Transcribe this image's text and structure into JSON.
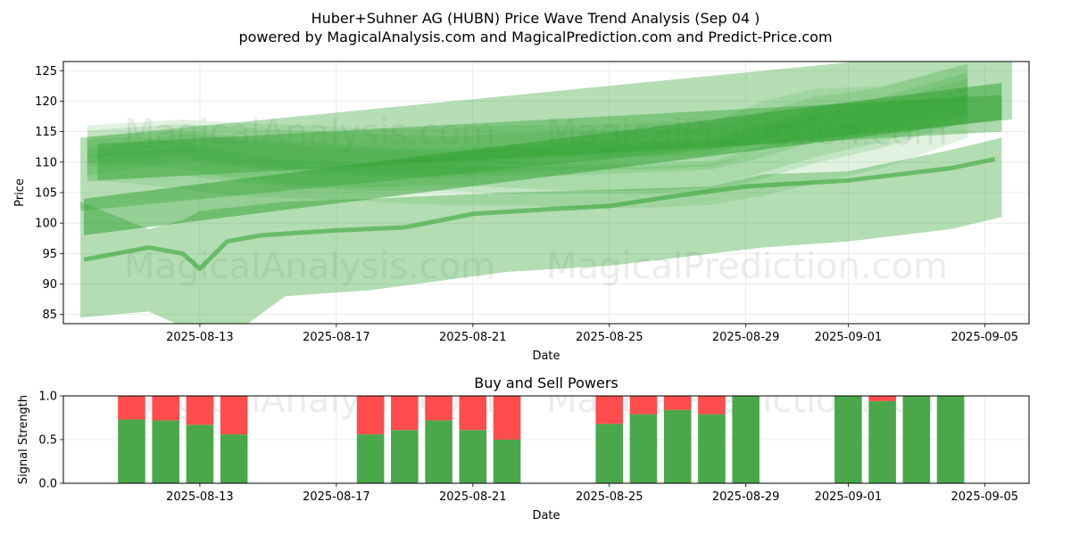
{
  "title_line1": "Huber+Suhner AG (HUBN) Price Wave Trend Analysis (Sep 04 )",
  "title_line2": "powered by MagicalAnalysis.com and MagicalPrediction.com and Predict-Price.com",
  "watermarks": [
    "MagicalAnalysis.com",
    "MagicalPrediction.com"
  ],
  "colors": {
    "band": "#2ca02c",
    "buy": "#4aa84a",
    "sell": "#ff4c4c",
    "grid": "#e6e6e6"
  },
  "chart_data": [
    {
      "type": "area",
      "title": "",
      "xlabel": "Date",
      "ylabel": "Price",
      "xlim": [
        -2.0,
        26.3
      ],
      "ylim": [
        83.5,
        126.5
      ],
      "x_ticks": [
        {
          "label": "2025-08-13",
          "pos": 2
        },
        {
          "label": "2025-08-17",
          "pos": 6
        },
        {
          "label": "2025-08-21",
          "pos": 10
        },
        {
          "label": "2025-08-25",
          "pos": 14
        },
        {
          "label": "2025-08-29",
          "pos": 18
        },
        {
          "label": "2025-09-01",
          "pos": 21
        },
        {
          "label": "2025-09-05",
          "pos": 25
        }
      ],
      "y_ticks": [
        85,
        90,
        95,
        100,
        105,
        110,
        115,
        120,
        125
      ],
      "wide_band": {
        "x": [
          -1.5,
          0.5,
          1.5,
          2.0,
          2.8,
          4.5,
          7.0,
          9.0,
          11.0,
          14.0,
          17.0,
          18.5,
          21.0,
          24.0,
          25.5
        ],
        "upper": [
          103.5,
          99.0,
          100.5,
          102.0,
          102.5,
          103.5,
          104.0,
          104.5,
          105.0,
          105.5,
          106.0,
          108.0,
          108.5,
          112.0,
          114.0
        ],
        "lower": [
          84.5,
          85.5,
          83.0,
          82.5,
          81.0,
          88.0,
          89.0,
          90.5,
          92.0,
          93.0,
          95.0,
          96.0,
          97.0,
          99.0,
          101.0
        ]
      },
      "main_line": {
        "x": [
          -1.4,
          0.5,
          1.5,
          2.0,
          2.8,
          3.8,
          6.0,
          8.0,
          10.0,
          12.0,
          14.0,
          16.0,
          18.0,
          21.0,
          24.0,
          25.3
        ],
        "y": [
          94.0,
          96.0,
          95.0,
          92.5,
          97.0,
          98.0,
          98.8,
          99.3,
          101.5,
          102.2,
          102.8,
          104.5,
          106.0,
          107.0,
          109.0,
          110.5
        ]
      },
      "trend_channels": [
        {
          "x": [
            -1.5,
            25.8
          ],
          "center": [
            108.0,
            123.0
          ],
          "half_width": 6.0,
          "opacity": 0.35
        },
        {
          "x": [
            -1.4,
            25.5
          ],
          "center": [
            101.0,
            120.0
          ],
          "half_width": 3.0,
          "opacity": 0.5
        },
        {
          "x": [
            -1.0,
            25.5
          ],
          "center": [
            110.0,
            118.0
          ],
          "half_width": 3.0,
          "opacity": 0.4
        }
      ],
      "wave_band": {
        "x": [
          -1.3,
          0.0,
          1.5,
          3.0,
          5.0,
          7.0,
          9.0,
          11.0,
          13.0,
          15.0,
          17.0,
          18.5,
          20.0,
          22.0,
          24.5
        ],
        "upper": [
          116.0,
          116.5,
          117.0,
          116.5,
          116.0,
          115.5,
          115.5,
          116.0,
          116.0,
          116.5,
          116.5,
          120.0,
          122.0,
          122.5,
          126.0
        ],
        "lower": [
          107.0,
          106.5,
          105.5,
          104.5,
          104.0,
          103.5,
          103.0,
          103.0,
          102.5,
          102.5,
          103.0,
          104.5,
          106.5,
          109.0,
          114.0
        ],
        "strands": [
          [
            110.0,
            111.0,
            112.5,
            111.5,
            110.5,
            110.0,
            109.5,
            110.0,
            110.0,
            110.5,
            111.0,
            113.0,
            115.5,
            117.5,
            121.5
          ],
          [
            113.0,
            113.5,
            114.0,
            113.5,
            113.0,
            112.5,
            112.0,
            112.5,
            113.0,
            113.0,
            113.5,
            116.0,
            118.5,
            120.0,
            124.0
          ],
          [
            109.0,
            109.5,
            110.0,
            109.0,
            108.0,
            107.5,
            107.5,
            107.0,
            107.0,
            107.0,
            107.5,
            109.5,
            112.0,
            114.5,
            119.0
          ],
          [
            111.5,
            112.0,
            111.0,
            109.5,
            108.5,
            108.0,
            108.5,
            108.0,
            107.5,
            107.5,
            108.0,
            110.5,
            113.0,
            115.5,
            120.0
          ],
          [
            112.0,
            112.5,
            113.0,
            112.0,
            111.0,
            110.5,
            110.0,
            110.5,
            111.0,
            111.0,
            111.5,
            114.0,
            116.5,
            118.5,
            122.5
          ]
        ]
      }
    },
    {
      "type": "bar",
      "title": "Buy and Sell Powers",
      "xlabel": "Date",
      "ylabel": "Signal Strength",
      "xlim": [
        -2.0,
        26.3
      ],
      "ylim": [
        0,
        1.0
      ],
      "x_ticks": [
        {
          "label": "2025-08-13",
          "pos": 2
        },
        {
          "label": "2025-08-17",
          "pos": 6
        },
        {
          "label": "2025-08-21",
          "pos": 10
        },
        {
          "label": "2025-08-25",
          "pos": 14
        },
        {
          "label": "2025-08-29",
          "pos": 18
        },
        {
          "label": "2025-09-01",
          "pos": 21
        },
        {
          "label": "2025-09-05",
          "pos": 25
        }
      ],
      "y_ticks": [
        "0.0",
        "0.5",
        "1.0"
      ],
      "x": [
        0,
        1,
        2,
        3,
        7,
        8,
        9,
        10,
        11,
        14,
        15,
        16,
        17,
        18,
        21,
        22,
        23,
        24
      ],
      "buy": [
        0.73,
        0.72,
        0.67,
        0.56,
        0.56,
        0.61,
        0.72,
        0.61,
        0.5,
        0.68,
        0.79,
        0.84,
        0.79,
        1.0,
        1.0,
        0.94,
        1.0,
        1.0
      ],
      "sell": [
        0.27,
        0.28,
        0.33,
        0.44,
        0.44,
        0.39,
        0.28,
        0.39,
        0.5,
        0.32,
        0.21,
        0.16,
        0.21,
        0.0,
        0.0,
        0.06,
        0.0,
        0.0
      ]
    }
  ]
}
